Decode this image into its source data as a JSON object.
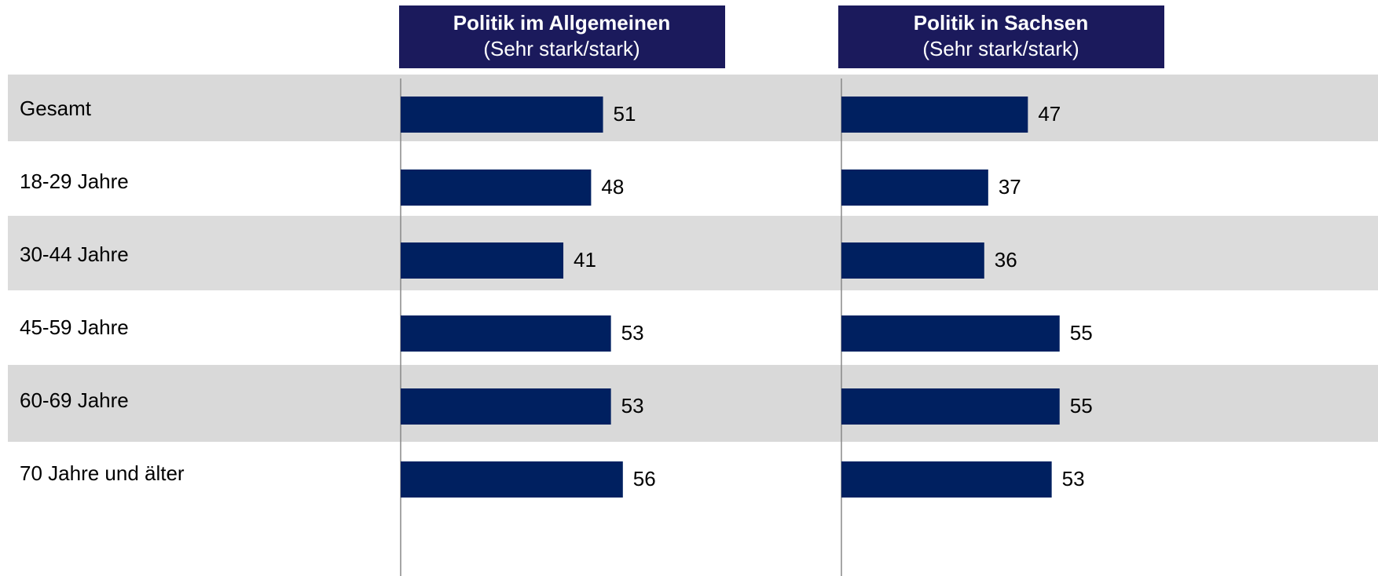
{
  "chart_data": {
    "type": "bar",
    "categories": [
      "Gesamt",
      "18-29 Jahre",
      "30-44 Jahre",
      "45-59 Jahre",
      "60-69 Jahre",
      "70 Jahre und älter"
    ],
    "series": [
      {
        "name": "Politik im Allgemeinen",
        "subtitle": "(Sehr stark/stark)",
        "color": "#002060",
        "values": [
          51,
          48,
          41,
          53,
          53,
          56
        ]
      },
      {
        "name": "Politik in Sachsen",
        "subtitle": "(Sehr stark/stark)",
        "color": "#002060",
        "values": [
          47,
          37,
          36,
          55,
          55,
          53
        ]
      }
    ]
  }
}
